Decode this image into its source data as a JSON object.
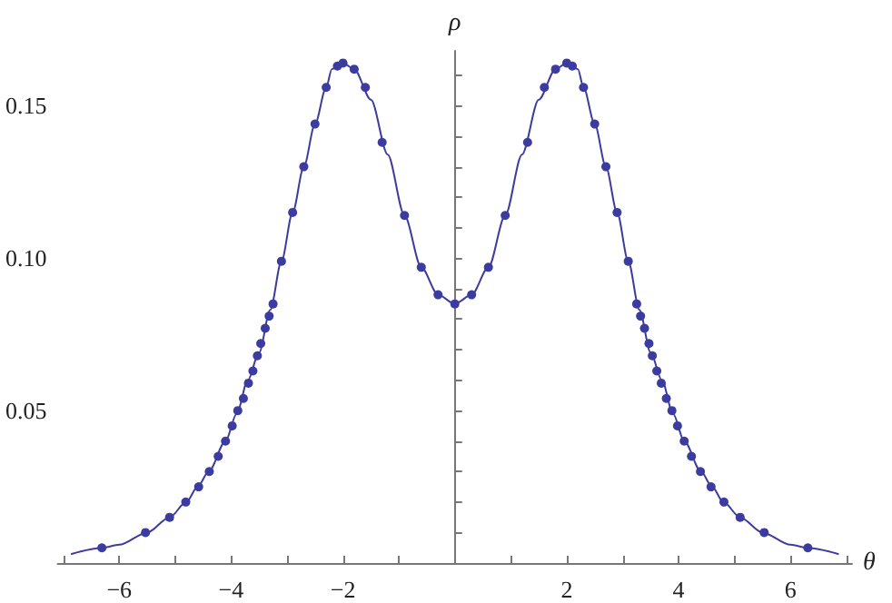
{
  "chart_data": {
    "type": "line",
    "xlabel": "θ",
    "ylabel": "ρ",
    "xlim": [
      -7.1,
      7.1
    ],
    "ylim": [
      0,
      0.168
    ],
    "xticks": [
      {
        "value": -7,
        "label": null
      },
      {
        "value": -6,
        "label": "−6"
      },
      {
        "value": -5,
        "label": null
      },
      {
        "value": -4,
        "label": "−4"
      },
      {
        "value": -3,
        "label": null
      },
      {
        "value": -2,
        "label": "−2"
      },
      {
        "value": -1,
        "label": null
      },
      {
        "value": 1,
        "label": null
      },
      2,
      {
        "value": 3,
        "label": null
      },
      4,
      {
        "value": 5,
        "label": null
      },
      6,
      {
        "value": 7,
        "label": null
      }
    ],
    "yticks": [
      {
        "value": 0.01,
        "label": null
      },
      {
        "value": 0.02,
        "label": null
      },
      {
        "value": 0.03,
        "label": null
      },
      {
        "value": 0.04,
        "label": null
      },
      0.05,
      {
        "value": 0.06,
        "label": null
      },
      {
        "value": 0.07,
        "label": null
      },
      {
        "value": 0.08,
        "label": null
      },
      {
        "value": 0.09,
        "label": null
      },
      {
        "value": 0.1,
        "label": "0.10"
      },
      {
        "value": 0.11,
        "label": null
      },
      {
        "value": 0.12,
        "label": null
      },
      {
        "value": 0.13,
        "label": null
      },
      {
        "value": 0.14,
        "label": null
      },
      0.15,
      {
        "value": 0.16,
        "label": null
      }
    ],
    "grid": false,
    "series": [
      {
        "marker": "none",
        "color": "#3c3ca0",
        "x": [
          -6.85,
          -6.3,
          -6.0,
          -5.5,
          -5.1,
          -4.8,
          -4.6,
          -4.4,
          -4.1,
          -3.9,
          -3.7,
          -3.5,
          -3.3,
          -3.1,
          -2.9,
          -2.7,
          -2.5,
          -2.3,
          -2.2,
          -2.0,
          -1.8,
          -1.5,
          -1.2,
          -0.9,
          -0.6,
          -0.3,
          0,
          0.3,
          0.6,
          0.9,
          1.2,
          1.5,
          1.8,
          2.0,
          2.2,
          2.3,
          2.5,
          2.7,
          2.9,
          3.1,
          3.3,
          3.5,
          3.7,
          3.9,
          4.1,
          4.4,
          4.6,
          4.8,
          5.1,
          5.5,
          6.0,
          6.3,
          6.85
        ],
        "values": [
          0.003,
          0.005,
          0.006,
          0.01,
          0.015,
          0.02,
          0.025,
          0.03,
          0.04,
          0.049,
          0.06,
          0.069,
          0.083,
          0.099,
          0.115,
          0.13,
          0.144,
          0.156,
          0.162,
          0.164,
          0.162,
          0.152,
          0.134,
          0.114,
          0.097,
          0.088,
          0.085,
          0.088,
          0.097,
          0.114,
          0.134,
          0.152,
          0.162,
          0.164,
          0.162,
          0.156,
          0.144,
          0.13,
          0.115,
          0.099,
          0.083,
          0.069,
          0.06,
          0.049,
          0.04,
          0.03,
          0.025,
          0.02,
          0.015,
          0.01,
          0.006,
          0.005,
          0.003
        ]
      },
      {
        "type": "scatter",
        "marker": "circle",
        "color": "#3c3ca0",
        "x": [
          -6.31,
          -5.53,
          -5.1,
          -4.81,
          -4.58,
          -4.39,
          -4.23,
          -4.1,
          -3.98,
          -3.88,
          -3.78,
          -3.69,
          -3.61,
          -3.53,
          -3.47,
          -3.39,
          -3.32,
          -3.25,
          -3.1,
          -2.9,
          -2.7,
          -2.5,
          -2.3,
          -2.1,
          -2.0,
          -1.8,
          -1.6,
          -1.3,
          -0.9,
          -0.6,
          -0.3,
          0,
          0.3,
          0.6,
          0.9,
          1.3,
          1.6,
          1.8,
          2.0,
          2.1,
          2.3,
          2.5,
          2.7,
          2.9,
          3.1,
          3.25,
          3.32,
          3.39,
          3.47,
          3.53,
          3.61,
          3.69,
          3.78,
          3.88,
          3.98,
          4.1,
          4.23,
          4.39,
          4.58,
          4.81,
          5.1,
          5.53,
          6.31
        ],
        "values": [
          0.005,
          0.01,
          0.015,
          0.02,
          0.025,
          0.03,
          0.035,
          0.04,
          0.045,
          0.05,
          0.054,
          0.059,
          0.063,
          0.068,
          0.072,
          0.077,
          0.081,
          0.085,
          0.099,
          0.115,
          0.13,
          0.144,
          0.156,
          0.163,
          0.164,
          0.162,
          0.156,
          0.138,
          0.114,
          0.097,
          0.088,
          0.085,
          0.088,
          0.097,
          0.114,
          0.138,
          0.156,
          0.162,
          0.164,
          0.163,
          0.156,
          0.144,
          0.13,
          0.115,
          0.099,
          0.085,
          0.081,
          0.077,
          0.072,
          0.068,
          0.063,
          0.059,
          0.054,
          0.05,
          0.045,
          0.04,
          0.035,
          0.03,
          0.025,
          0.02,
          0.015,
          0.01,
          0.005
        ]
      }
    ]
  }
}
